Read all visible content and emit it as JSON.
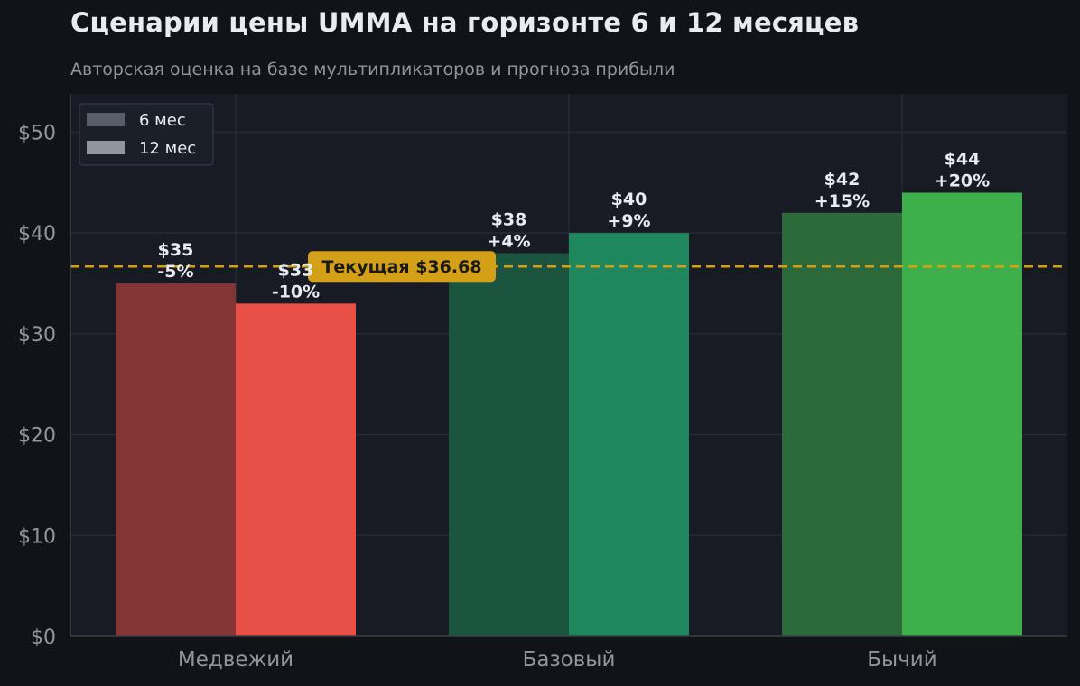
{
  "header": {
    "title": "Сценарии цены UMMA на горизонте 6 и 12 месяцев",
    "subtitle": "Авторская оценка на базе мультипликаторов и прогноза прибыли"
  },
  "colors": {
    "background": "#101418",
    "plot_background": "#181b23",
    "grid": "#262a33",
    "reference_line": "#d4a017",
    "bear_6m": "#843637",
    "bear_12m": "#e84f47",
    "base_6m": "#1b543f",
    "base_12m": "#1f875d",
    "bull_6m": "#2c6a3c",
    "bull_12m": "#3db04c",
    "legend_6m": "#585d68",
    "legend_12m": "#8f969e"
  },
  "chart_data": {
    "type": "bar",
    "title": "Сценарии цены UMMA на горизонте 6 и 12 месяцев",
    "subtitle": "Авторская оценка на базе мультипликаторов и прогноза прибыли",
    "categories": [
      "Медвежий",
      "Базовый",
      "Бычий"
    ],
    "series": [
      {
        "name": "6 мес",
        "values": [
          35,
          38,
          42
        ],
        "value_labels": [
          "$35",
          "$38",
          "$42"
        ],
        "change_labels": [
          "-5%",
          "+4%",
          "+15%"
        ]
      },
      {
        "name": "12 мес",
        "values": [
          33,
          40,
          44
        ],
        "value_labels": [
          "$33",
          "$40",
          "$44"
        ],
        "change_labels": [
          "-10%",
          "+9%",
          "+20%"
        ]
      }
    ],
    "y_ticks": [
      0,
      10,
      20,
      30,
      40,
      50
    ],
    "y_tick_labels": [
      "$0",
      "$10",
      "$20",
      "$30",
      "$40",
      "$50"
    ],
    "ylim": [
      0,
      53.8
    ],
    "xlabel": "",
    "ylabel": "",
    "grid": true,
    "legend_position": "top-left",
    "reference_line": {
      "value": 36.68,
      "label": "Текущая $36.68",
      "style": "dashed"
    }
  }
}
